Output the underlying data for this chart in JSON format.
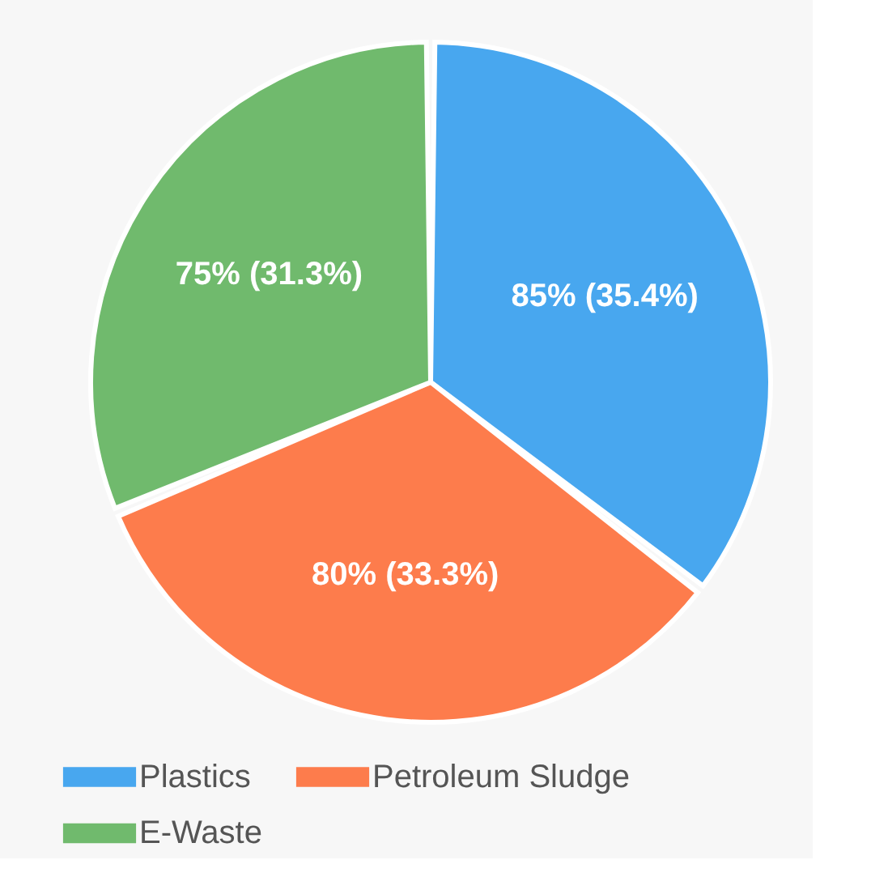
{
  "chart_data": {
    "type": "pie",
    "categories": [
      "Plastics",
      "Petroleum Sludge",
      "E-Waste"
    ],
    "values": [
      85,
      80,
      75
    ],
    "colors": [
      "#48a7ef",
      "#fd7c4c",
      "#70ba6d"
    ],
    "value_labels": [
      "85% (35.4%)",
      "80% (33.3%)",
      "75% (31.3%)"
    ],
    "legend": "bottom"
  }
}
